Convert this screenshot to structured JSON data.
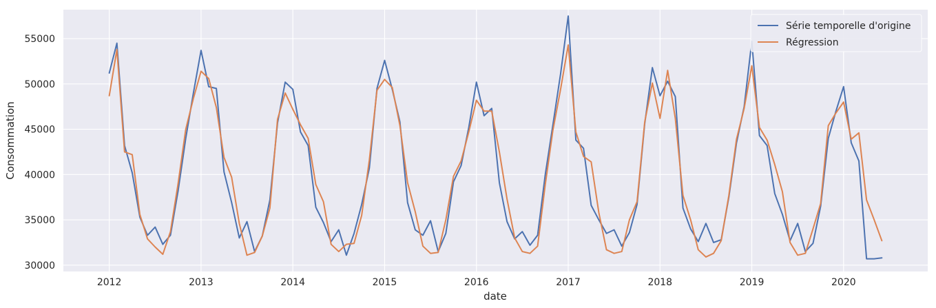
{
  "chart_data": {
    "type": "line",
    "title": "",
    "xlabel": "date",
    "ylabel": "Consommation",
    "x_start": "2012-01",
    "x_end": "2020-06",
    "frequency": "monthly",
    "x_ticks": [
      "2012",
      "2013",
      "2014",
      "2015",
      "2016",
      "2017",
      "2018",
      "2019",
      "2020"
    ],
    "y_ticks": [
      "30000",
      "35000",
      "40000",
      "45000",
      "50000",
      "55000"
    ],
    "ylim": [
      29300,
      58200
    ],
    "xlim": [
      "2011-07",
      "2020-12"
    ],
    "grid": true,
    "legend_position": "top-right",
    "background": "#eaeaf2",
    "series": [
      {
        "name": "Série temporelle d'origine",
        "color": "#4c72b0",
        "values": [
          51200,
          54500,
          43200,
          40200,
          35300,
          33300,
          34200,
          32300,
          33300,
          38200,
          44000,
          49000,
          53700,
          49700,
          49500,
          40300,
          36900,
          33000,
          34800,
          31500,
          33200,
          37200,
          45700,
          50200,
          49400,
          44700,
          43200,
          36400,
          34700,
          32600,
          33900,
          31100,
          33500,
          36700,
          40700,
          49500,
          52600,
          49400,
          45800,
          36900,
          33900,
          33300,
          34900,
          31500,
          33500,
          39200,
          41000,
          45200,
          50200,
          46500,
          47300,
          39100,
          34800,
          32900,
          33700,
          32200,
          33300,
          40000,
          45500,
          51100,
          57500,
          43800,
          42900,
          36600,
          35000,
          33500,
          33900,
          32100,
          33600,
          36700,
          45600,
          51800,
          48700,
          50300,
          48600,
          36300,
          34000,
          32600,
          34600,
          32500,
          32800,
          37500,
          43500,
          47500,
          54700,
          44300,
          43200,
          37900,
          35600,
          32700,
          34600,
          31500,
          32400,
          36500,
          44000,
          47000,
          49700,
          43500,
          41500,
          30700,
          30700,
          30800
        ]
      },
      {
        "name": "Régression",
        "color": "#dd8452",
        "values": [
          48700,
          53800,
          42500,
          42200,
          35600,
          32900,
          32000,
          31200,
          33700,
          39000,
          45000,
          48400,
          51400,
          50600,
          47400,
          41900,
          39700,
          34600,
          31100,
          31400,
          33200,
          36300,
          46100,
          49000,
          47200,
          45500,
          44000,
          38900,
          37000,
          32300,
          31500,
          32300,
          32400,
          35500,
          41600,
          49300,
          50500,
          49600,
          45400,
          39100,
          35900,
          32100,
          31300,
          31400,
          35000,
          39800,
          41500,
          44700,
          48200,
          47000,
          47000,
          42500,
          37300,
          33000,
          31500,
          31300,
          32100,
          38900,
          44900,
          49400,
          54300,
          44700,
          42000,
          41400,
          35800,
          31700,
          31300,
          31500,
          35000,
          37000,
          45800,
          50100,
          46200,
          51500,
          46200,
          37700,
          35000,
          31700,
          30900,
          31300,
          32700,
          37700,
          43900,
          47300,
          52000,
          45200,
          43800,
          41100,
          38100,
          32500,
          31100,
          31300,
          34000,
          36800,
          45400,
          46800,
          48000,
          43900,
          44600,
          37200,
          35000,
          32700
        ]
      }
    ]
  }
}
